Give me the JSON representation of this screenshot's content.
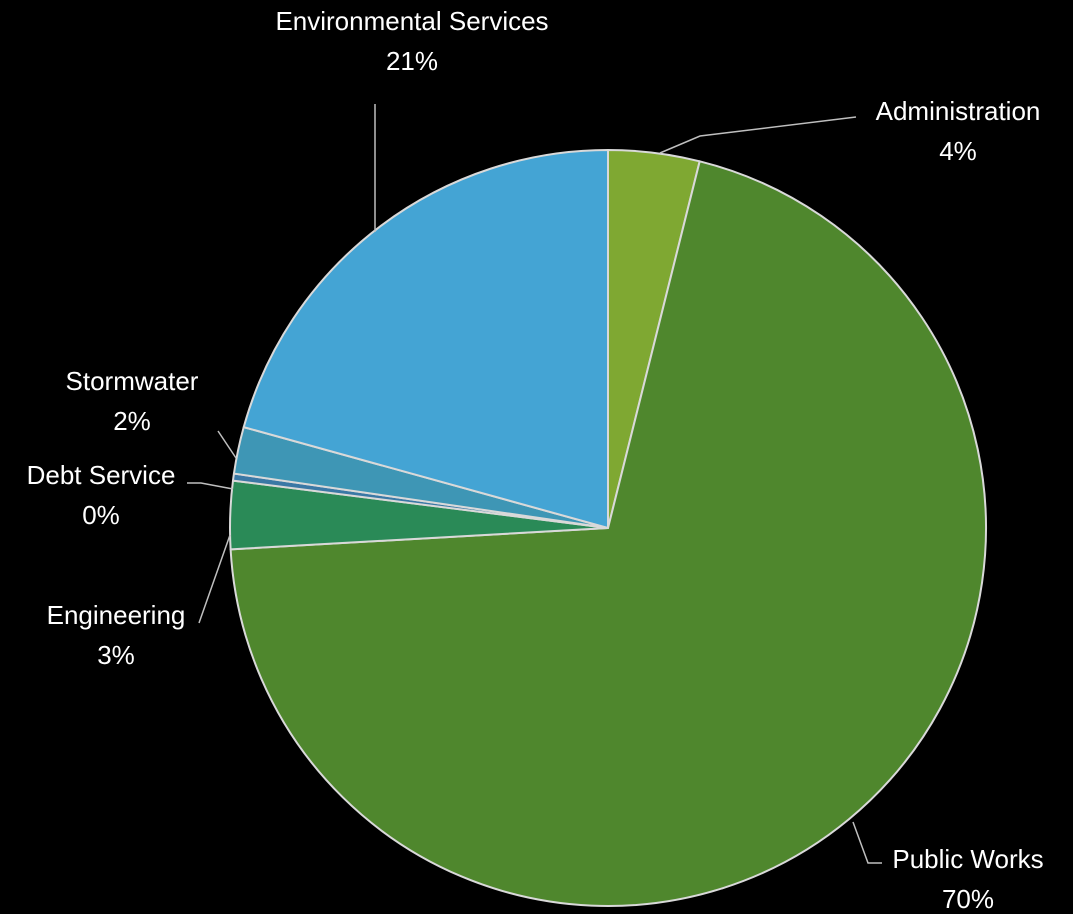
{
  "chart_data": {
    "type": "pie",
    "title": "",
    "start_angle_deg": 0,
    "direction": "clockwise",
    "slices": [
      {
        "label": "Administration",
        "pct_label": "4%",
        "value": 3.9,
        "color": "#7FA832"
      },
      {
        "label": "Public Works",
        "pct_label": "70%",
        "value": 70.2,
        "color": "#4F872D"
      },
      {
        "label": "Engineering",
        "pct_label": "3%",
        "value": 2.9,
        "color": "#2A8A57"
      },
      {
        "label": "Debt Service",
        "pct_label": "0%",
        "value": 0.3,
        "color": "#3A78A5"
      },
      {
        "label": "Stormwater",
        "pct_label": "2%",
        "value": 2.0,
        "color": "#3E96B5"
      },
      {
        "label": "Environmental Services",
        "pct_label": "21%",
        "value": 20.7,
        "color": "#44A4D4"
      }
    ],
    "slice_border_color": "#D9D9D9",
    "leader_line_color": "#BFBFBF",
    "background_color": "#000000",
    "label_color": "#FFFFFF"
  }
}
